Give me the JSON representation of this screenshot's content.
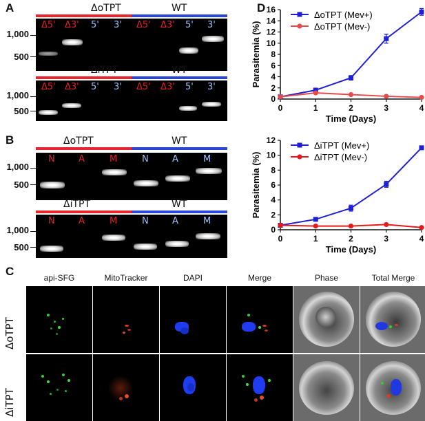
{
  "panels": {
    "a": {
      "label": "A"
    },
    "b": {
      "label": "B"
    },
    "c": {
      "label": "C"
    },
    "d": {
      "label": "D"
    }
  },
  "gels": {
    "a_top": {
      "left_name": "ΔoTPT",
      "right_name": "WT",
      "lanes": [
        "Δ5'",
        "Δ3'",
        "5'",
        "3'",
        "Δ5'",
        "Δ3'",
        "5'",
        "3'"
      ],
      "markers": [
        "1,000",
        "500"
      ]
    },
    "a_bottom": {
      "left_name": "ΔiTPT",
      "right_name": "WT",
      "lanes": [
        "Δ5'",
        "Δ3'",
        "5'",
        "3'",
        "Δ5'",
        "Δ3'",
        "5'",
        "3'"
      ],
      "markers": [
        "1,000",
        "500"
      ]
    },
    "b_top": {
      "left_name": "ΔoTPT",
      "right_name": "WT",
      "lanes": [
        "N",
        "A",
        "M",
        "N",
        "A",
        "M"
      ],
      "markers": [
        "1,000",
        "500"
      ]
    },
    "b_bottom": {
      "left_name": "ΔiTPT",
      "right_name": "WT",
      "lanes": [
        "N",
        "A",
        "M",
        "N",
        "A",
        "M"
      ],
      "markers": [
        "1,000",
        "500"
      ]
    }
  },
  "colors": {
    "red": "#e8252c",
    "blue": "#2a46d9",
    "lane_blue": "#9ec4ff"
  },
  "microscopy": {
    "columns": [
      "api-SFG",
      "MitoTracker",
      "DAPI",
      "Merge",
      "Phase",
      "Total Merge"
    ],
    "rows": [
      "ΔoTPT",
      "ΔiTPT"
    ]
  },
  "chart_data": [
    {
      "type": "line",
      "x": [
        0,
        1,
        2,
        3,
        4
      ],
      "xlabel": "Time (Days)",
      "ylabel": "Parasitemia (%)",
      "xlim": [
        0,
        4
      ],
      "ylim": [
        0,
        16
      ],
      "yticks": [
        0,
        2,
        4,
        6,
        8,
        10,
        12,
        14,
        16
      ],
      "xticks": [
        0,
        1,
        2,
        3,
        4
      ],
      "legend": "top-left",
      "series": [
        {
          "name": "ΔoTPT (Mev+)",
          "color": "#1f1fd6",
          "marker": "square",
          "values": [
            0.4,
            1.6,
            3.8,
            10.8,
            15.6
          ],
          "err": [
            0.1,
            0.3,
            0.4,
            0.8,
            0.6
          ]
        },
        {
          "name": "ΔoTPT (Mev-)",
          "color": "#e84a4a",
          "marker": "circle",
          "values": [
            0.4,
            1.1,
            0.8,
            0.5,
            0.3
          ],
          "err": [
            0,
            0,
            0,
            0,
            0
          ]
        }
      ]
    },
    {
      "type": "line",
      "x": [
        0,
        1,
        2,
        3,
        4
      ],
      "xlabel": "Time (Days)",
      "ylabel": "Parasitemia (%)",
      "xlim": [
        0,
        4
      ],
      "ylim": [
        0,
        12
      ],
      "yticks": [
        0,
        2,
        4,
        6,
        8,
        10,
        12
      ],
      "xticks": [
        0,
        1,
        2,
        3,
        4
      ],
      "legend": "top-left",
      "series": [
        {
          "name": "ΔiTPT (Mev+)",
          "color": "#1f1fd6",
          "marker": "square",
          "values": [
            0.6,
            1.4,
            2.9,
            6.1,
            11.0
          ],
          "err": [
            0.1,
            0.2,
            0.4,
            0.4,
            0.2
          ]
        },
        {
          "name": "ΔiTPT (Mev-)",
          "color": "#e31a1a",
          "marker": "circle",
          "values": [
            0.6,
            0.5,
            0.5,
            0.7,
            0.3
          ],
          "err": [
            0,
            0,
            0,
            0,
            0
          ]
        }
      ]
    }
  ]
}
